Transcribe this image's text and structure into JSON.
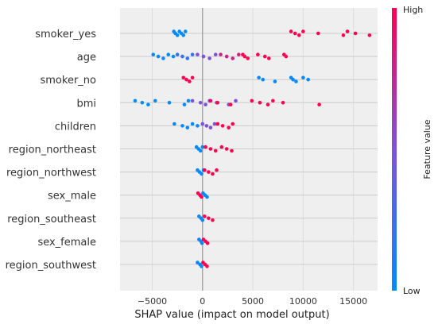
{
  "chart_data": {
    "type": "scatter",
    "subtype": "shap-beeswarm",
    "title": "",
    "xlabel": "SHAP value (impact on model output)",
    "xlim": [
      -8200,
      17400
    ],
    "xticks": [
      -5000,
      0,
      5000,
      10000,
      15000
    ],
    "grid": true,
    "colorbar": {
      "label": "Feature value",
      "high_label": "High",
      "low_label": "Low",
      "low_color": "#008bfb",
      "high_color": "#ff0052"
    },
    "features": [
      {
        "name": "smoker_yes",
        "groups": [
          {
            "color": 0.0,
            "values": [
              -2850,
              -2700,
              -2500,
              -2300,
              -2100,
              -1900,
              -1700
            ]
          },
          {
            "color": 1.0,
            "values": [
              8800,
              9200,
              9600,
              10000,
              11500,
              14000,
              14400,
              15200,
              16600
            ]
          }
        ]
      },
      {
        "name": "age",
        "groups": [
          {
            "color": 0.0,
            "values": [
              -4900,
              -4400,
              -3900,
              -3400,
              -2900
            ]
          },
          {
            "color": 0.2,
            "values": [
              -2500,
              -2000,
              -1500,
              -1000
            ]
          },
          {
            "color": 0.5,
            "values": [
              -500,
              100,
              700,
              1300
            ]
          },
          {
            "color": 0.8,
            "values": [
              1800,
              2400,
              3000,
              3600
            ]
          },
          {
            "color": 1.0,
            "values": [
              4000,
              4200,
              4500,
              5500,
              6200,
              6600,
              8100,
              8300
            ]
          }
        ]
      },
      {
        "name": "smoker_no",
        "groups": [
          {
            "color": 1.0,
            "values": [
              -1900,
              -1600,
              -1300,
              -1000
            ]
          },
          {
            "color": 0.0,
            "values": [
              5600,
              6000,
              7200,
              8800,
              9000,
              9300,
              10000,
              10500
            ]
          }
        ]
      },
      {
        "name": "bmi",
        "groups": [
          {
            "color": 0.0,
            "values": [
              -6700,
              -6000,
              -5400,
              -4700,
              -3300,
              -1800,
              -1400
            ]
          },
          {
            "color": 0.5,
            "values": [
              -1000,
              -200,
              300,
              700,
              1400,
              2600,
              3300
            ]
          },
          {
            "color": 1.0,
            "values": [
              800,
              1500,
              2800,
              4900,
              5700,
              6500,
              7000,
              8000,
              11600
            ]
          }
        ]
      },
      {
        "name": "children",
        "groups": [
          {
            "color": 0.0,
            "values": [
              -2800,
              -2000,
              -1500,
              -1000,
              -500
            ]
          },
          {
            "color": 0.5,
            "values": [
              0,
              400,
              800,
              1200
            ]
          },
          {
            "color": 1.0,
            "values": [
              1500,
              2000,
              2600,
              3000
            ]
          }
        ]
      },
      {
        "name": "region_northeast",
        "groups": [
          {
            "color": 0.0,
            "values": [
              -600,
              -400,
              -200,
              0
            ]
          },
          {
            "color": 1.0,
            "values": [
              300,
              800,
              1300,
              1900,
              2400,
              2900
            ]
          }
        ]
      },
      {
        "name": "region_northwest",
        "groups": [
          {
            "color": 0.0,
            "values": [
              -500,
              -300,
              -100,
              100
            ]
          },
          {
            "color": 1.0,
            "values": [
              200,
              600,
              1000,
              1400
            ]
          }
        ]
      },
      {
        "name": "sex_male",
        "groups": [
          {
            "color": 1.0,
            "values": [
              -450,
              -250,
              -100
            ]
          },
          {
            "color": 0.0,
            "values": [
              50,
              250,
              450
            ]
          }
        ]
      },
      {
        "name": "region_southeast",
        "groups": [
          {
            "color": 0.0,
            "values": [
              -350,
              -150,
              0
            ]
          },
          {
            "color": 1.0,
            "values": [
              200,
              600,
              1000
            ]
          }
        ]
      },
      {
        "name": "sex_female",
        "groups": [
          {
            "color": 0.0,
            "values": [
              -350,
              -150,
              -50
            ]
          },
          {
            "color": 1.0,
            "values": [
              100,
              300,
              500
            ]
          }
        ]
      },
      {
        "name": "region_southwest",
        "groups": [
          {
            "color": 0.0,
            "values": [
              -500,
              -250,
              -100
            ]
          },
          {
            "color": 1.0,
            "values": [
              50,
              250,
              450
            ]
          }
        ]
      }
    ]
  }
}
